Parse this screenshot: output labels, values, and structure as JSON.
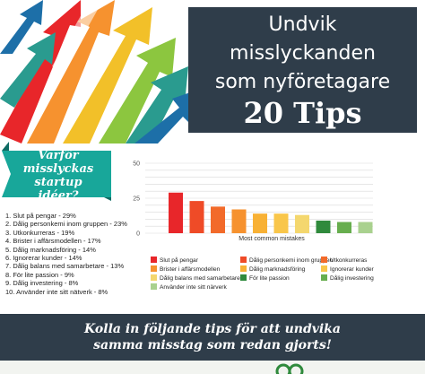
{
  "header": {
    "title_line1": "Undvik",
    "title_line2": "misslyckanden",
    "title_line3": "som nyföretagare",
    "title_line4": "20 Tips"
  },
  "ribbon": {
    "line1": "Varför",
    "line2": "misslyckas",
    "line3": "startup idéer?"
  },
  "reasons": [
    "1. Slut på pengar - 29%",
    "2. Dålig personkemi inom gruppen - 23%",
    "3. Utkonkurreras - 19%",
    "4. Brister i affärsmodellen - 17%",
    "5. Dålig marknadsföring - 14%",
    "6. Ignorerar kunder - 14%",
    "7. Dålig balans med samarbetare - 13%",
    "8. För lite passion - 9%",
    "9. Dålig investering - 8%",
    "10. Använder inte sitt nätverk - 8%"
  ],
  "chart_data": {
    "type": "bar",
    "xlabel": "Most common mistakes",
    "ylim": [
      0,
      50
    ],
    "yticks": [
      0,
      25,
      50
    ],
    "grid": true,
    "legend_position": "bottom",
    "series": [
      {
        "name": "Slut på pengar",
        "value": 29,
        "color": "#e8262a"
      },
      {
        "name": "Dålig personkemi inom gruppen",
        "value": 23,
        "color": "#ef4b27"
      },
      {
        "name": "Utkonkurreras",
        "value": 19,
        "color": "#f26a2a"
      },
      {
        "name": "Brister i affärsmodellen",
        "value": 17,
        "color": "#f6922f"
      },
      {
        "name": "Dålig marknadsföring",
        "value": 14,
        "color": "#f8b135"
      },
      {
        "name": "Ignorerar kunder",
        "value": 14,
        "color": "#f9c64a"
      },
      {
        "name": "Dålig balans med samarbetare",
        "value": 13,
        "color": "#f4d76e"
      },
      {
        "name": "För lite passion",
        "value": 9,
        "color": "#2f8a3c"
      },
      {
        "name": "Dålig investering",
        "value": 8,
        "color": "#67ae4e"
      },
      {
        "name": "Använder inte sitt närverk",
        "value": 8,
        "color": "#a9d18e"
      }
    ]
  },
  "banner": {
    "line1": "Kolla in följande tips för att undvika",
    "line2": "samma misstag som redan gjorts!"
  }
}
